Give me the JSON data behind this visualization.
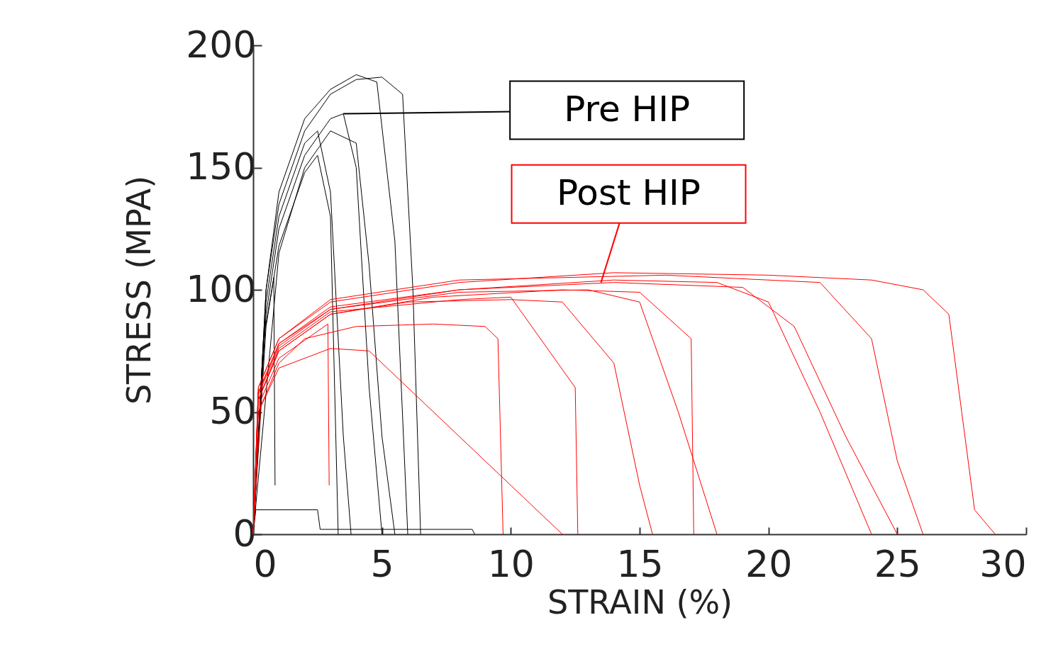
{
  "chart_data": {
    "type": "line",
    "xlabel": "STRAIN (%)",
    "ylabel": "STRESS (MPA)",
    "xlim": [
      0,
      30
    ],
    "ylim": [
      0,
      200
    ],
    "xticks": [
      0,
      5,
      10,
      15,
      20,
      25,
      30
    ],
    "yticks": [
      0,
      50,
      100,
      150,
      200
    ],
    "grid": false,
    "legend": false,
    "series": [
      {
        "color": "#000000",
        "x": [
          0,
          0.5,
          1,
          2,
          3,
          4,
          5,
          5.8,
          6.2,
          6.5
        ],
        "values": [
          0,
          100,
          135,
          165,
          180,
          186,
          187,
          180,
          100,
          0
        ]
      },
      {
        "color": "#000000",
        "x": [
          0,
          0.5,
          1,
          2,
          3,
          3.5,
          4,
          4.5,
          5
        ],
        "values": [
          0,
          90,
          125,
          155,
          170,
          172,
          150,
          60,
          0
        ]
      },
      {
        "color": "#000000",
        "x": [
          0,
          0.5,
          1,
          2,
          2.5,
          3,
          3.5,
          3.8
        ],
        "values": [
          0,
          95,
          130,
          160,
          165,
          140,
          40,
          0
        ]
      },
      {
        "color": "#000000",
        "x": [
          0,
          0.5,
          1,
          2,
          3,
          4,
          4.8,
          5.5,
          6
        ],
        "values": [
          0,
          100,
          140,
          170,
          182,
          188,
          185,
          120,
          0
        ]
      },
      {
        "color": "#000000",
        "x": [
          0,
          0.4,
          0.8,
          0.85
        ],
        "values": [
          0,
          80,
          105,
          20
        ]
      },
      {
        "color": "#000000",
        "x": [
          0,
          0.5,
          1,
          2,
          2.5,
          3,
          3.3
        ],
        "values": [
          0,
          85,
          118,
          148,
          155,
          130,
          0
        ]
      },
      {
        "color": "#000000",
        "x": [
          0,
          1,
          2,
          3,
          4,
          4.5,
          5,
          5.5
        ],
        "values": [
          0,
          115,
          150,
          165,
          160,
          110,
          40,
          0
        ]
      },
      {
        "color": "#000000",
        "x": [
          0,
          0.1,
          2.5,
          2.6,
          8.5,
          8.6
        ],
        "values": [
          0,
          10,
          10,
          2,
          2,
          0
        ]
      },
      {
        "color": "#ff0000",
        "x": [
          0,
          0.2,
          1,
          2,
          4,
          7,
          9,
          9.5,
          9.7
        ],
        "values": [
          0,
          50,
          70,
          80,
          85,
          86,
          85,
          80,
          0
        ]
      },
      {
        "color": "#ff0000",
        "x": [
          0,
          0.2,
          1,
          3,
          6,
          10,
          12,
          14,
          15,
          15.5
        ],
        "values": [
          0,
          55,
          75,
          90,
          95,
          96,
          95,
          70,
          20,
          0
        ]
      },
      {
        "color": "#ff0000",
        "x": [
          0,
          0.2,
          1,
          3,
          8,
          14,
          20,
          24,
          26,
          27,
          27.5,
          28,
          28.8
        ],
        "values": [
          0,
          60,
          80,
          95,
          103,
          107,
          106,
          104,
          100,
          90,
          50,
          10,
          0
        ]
      },
      {
        "color": "#ff0000",
        "x": [
          0,
          0.2,
          1,
          3,
          8,
          14,
          18,
          20,
          22,
          24
        ],
        "values": [
          0,
          58,
          78,
          93,
          100,
          104,
          103,
          95,
          50,
          0
        ]
      },
      {
        "color": "#ff0000",
        "x": [
          0,
          0.2,
          1,
          3,
          7,
          12,
          15,
          17,
          17.1
        ],
        "values": [
          0,
          55,
          75,
          90,
          97,
          100,
          99,
          80,
          0
        ]
      },
      {
        "color": "#ff0000",
        "x": [
          0,
          0.2,
          1,
          3,
          4.5,
          7,
          10,
          12
        ],
        "values": [
          0,
          50,
          68,
          76,
          75,
          50,
          20,
          0
        ]
      },
      {
        "color": "#ff0000",
        "x": [
          0,
          0.3,
          1,
          2.9,
          2.95
        ],
        "values": [
          0,
          55,
          72,
          86,
          20
        ]
      },
      {
        "color": "#ff0000",
        "x": [
          0,
          0.2,
          1,
          3,
          8,
          13,
          15,
          16.5,
          18
        ],
        "values": [
          0,
          58,
          78,
          92,
          99,
          100,
          95,
          50,
          0
        ]
      },
      {
        "color": "#ff0000",
        "x": [
          0,
          0.2,
          1,
          3,
          8,
          16,
          22,
          24,
          25,
          26
        ],
        "values": [
          0,
          60,
          80,
          96,
          104,
          106,
          103,
          80,
          30,
          0
        ]
      },
      {
        "color": "#ff0000",
        "x": [
          0,
          0.2,
          1,
          3,
          8,
          10,
          12.5,
          12.6
        ],
        "values": [
          0,
          55,
          76,
          91,
          96,
          97,
          60,
          0
        ]
      },
      {
        "color": "#ff0000",
        "x": [
          0,
          0.2,
          1,
          3,
          8,
          14,
          19,
          21,
          23,
          25
        ],
        "values": [
          0,
          57,
          77,
          92,
          100,
          103,
          101,
          85,
          40,
          0
        ]
      }
    ],
    "annotations": [
      {
        "text": "Pre HIP",
        "x": 3.5,
        "y": 172
      },
      {
        "text": "Post HIP",
        "x": 13.5,
        "y": 103
      }
    ]
  }
}
